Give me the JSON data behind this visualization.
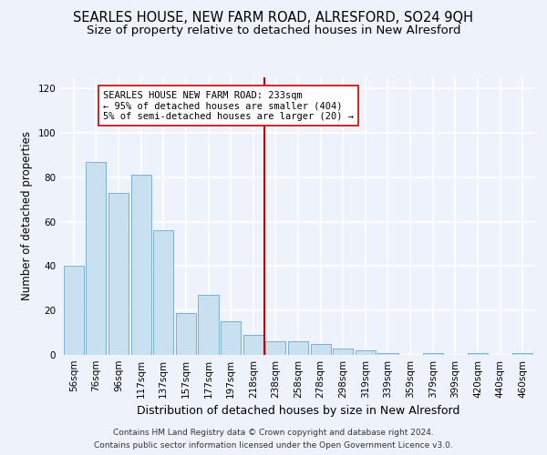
{
  "title1": "SEARLES HOUSE, NEW FARM ROAD, ALRESFORD, SO24 9QH",
  "title2": "Size of property relative to detached houses in New Alresford",
  "xlabel": "Distribution of detached houses by size in New Alresford",
  "ylabel": "Number of detached properties",
  "footnote1": "Contains HM Land Registry data © Crown copyright and database right 2024.",
  "footnote2": "Contains public sector information licensed under the Open Government Licence v3.0.",
  "bar_labels": [
    "56sqm",
    "76sqm",
    "96sqm",
    "117sqm",
    "137sqm",
    "157sqm",
    "177sqm",
    "197sqm",
    "218sqm",
    "238sqm",
    "258sqm",
    "278sqm",
    "298sqm",
    "319sqm",
    "339sqm",
    "359sqm",
    "379sqm",
    "399sqm",
    "420sqm",
    "440sqm",
    "460sqm"
  ],
  "bar_values": [
    40,
    87,
    73,
    81,
    56,
    19,
    27,
    15,
    9,
    6,
    6,
    5,
    3,
    2,
    1,
    0,
    1,
    0,
    1,
    0,
    1
  ],
  "bar_color": "#c9e0f0",
  "bar_edge_color": "#7ab0d4",
  "vline_x": 8.5,
  "vline_color": "#cc0000",
  "annotation_text": "SEARLES HOUSE NEW FARM ROAD: 233sqm\n← 95% of detached houses are smaller (404)\n5% of semi-detached houses are larger (20) →",
  "ylim": [
    0,
    125
  ],
  "yticks": [
    0,
    20,
    40,
    60,
    80,
    100,
    120
  ],
  "bg_color": "#eef2fb",
  "grid_color": "#ffffff",
  "title1_fontsize": 10.5,
  "title2_fontsize": 9.5,
  "xlabel_fontsize": 9,
  "ylabel_fontsize": 8.5,
  "tick_fontsize": 7.5,
  "annot_fontsize": 7.5
}
